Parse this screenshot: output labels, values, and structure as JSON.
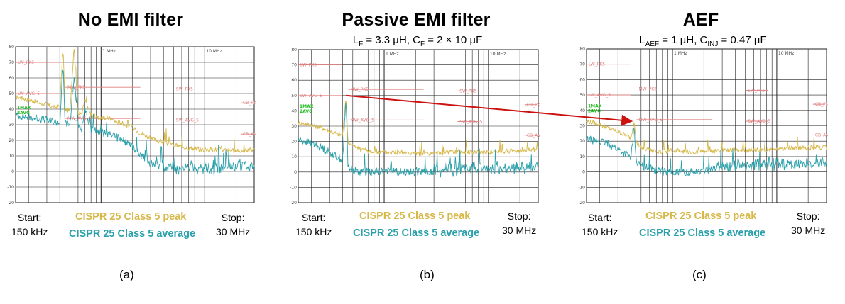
{
  "colors": {
    "peak": "#d7b84a",
    "average": "#2aa0aa",
    "limit": "#e08080",
    "arrow": "#cc1111",
    "marker": "#22bb22",
    "grid": "#222222"
  },
  "tick_labels": {
    "y": [
      "80",
      "70",
      "60",
      "50",
      "40",
      "30",
      "20",
      "10",
      "0",
      "-10",
      "-20"
    ],
    "decades": [
      "1 MHz",
      "10 MHz"
    ]
  },
  "limit_labels": [
    "LW_PK5",
    "LW_AVG_5",
    "MW_PK5",
    "MW_AVG_5",
    "SW_PK5",
    "SW_AVG_5",
    "CB_PK5",
    "CB_AVG_5"
  ],
  "trace_labels": [
    "1MAX",
    "2AVG"
  ],
  "panels": [
    {
      "letter": "(a)",
      "title": "No EMI filter",
      "subtitle": null,
      "start": "Start:\n150 kHz",
      "stop": "Stop:\n30 MHz",
      "peak_legend": "CISPR 25 Class 5 peak",
      "avg_legend": "CISPR 25 Class 5 average"
    },
    {
      "letter": "(b)",
      "title": "Passive EMI filter",
      "subtitle": {
        "l_pre": "L",
        "l_sub": "F",
        "l_val": " = 3.3 µH, C",
        "c_sub": "F",
        "c_val": " = 2 × 10 µF"
      },
      "start": "Start:\n150 kHz",
      "stop": "Stop:\n30 MHz",
      "peak_legend": "CISPR 25 Class 5 peak",
      "avg_legend": "CISPR 25 Class 5 average"
    },
    {
      "letter": "(c)",
      "title": "AEF",
      "subtitle": {
        "l_pre": "L",
        "l_sub": "AEF",
        "l_val": " = 1 µH, C",
        "c_sub": "INJ",
        "c_val": " = 0.47 µF"
      },
      "start": "Start:\n150 kHz",
      "stop": "Stop:\n30 MHz",
      "peak_legend": "CISPR 25 Class 5 peak",
      "avg_legend": "CISPR 25 Class 5 average"
    }
  ],
  "chart_data": [
    {
      "type": "line",
      "title": "No EMI filter",
      "xscale": "log",
      "xlim": [
        0.15,
        30
      ],
      "ylim": [
        -20,
        80
      ],
      "xlabel": "",
      "ylabel": "",
      "limits": [
        {
          "name": "LW_PK5",
          "f": [
            0.15,
            0.3
          ],
          "level": 70
        },
        {
          "name": "LW_AVG_5",
          "f": [
            0.15,
            0.3
          ],
          "level": 50
        },
        {
          "name": "MW_PK5",
          "f": [
            0.53,
            1.8
          ],
          "level": 54
        },
        {
          "name": "MW_AVG_5",
          "f": [
            0.53,
            1.8
          ],
          "level": 34
        },
        {
          "name": "SW_PK5",
          "f": [
            5.9,
            6.2
          ],
          "level": 53
        },
        {
          "name": "SW_AVG_5",
          "f": [
            5.9,
            6.2
          ],
          "level": 33
        },
        {
          "name": "CB_PK5",
          "f": [
            26,
            28
          ],
          "level": 44
        },
        {
          "name": "CB_AVG_5",
          "f": [
            26,
            28
          ],
          "level": 24
        }
      ],
      "series": [
        {
          "name": "1MAX",
          "f": [
            0.15,
            0.2,
            0.25,
            0.3,
            0.35,
            0.4,
            0.43,
            0.45,
            0.5,
            0.55,
            0.6,
            0.65,
            0.7,
            0.8,
            0.9,
            1.0,
            1.2,
            1.4,
            1.6,
            2.0,
            2.5,
            3.0,
            4.0,
            5.0,
            7.0,
            10,
            15,
            20,
            30
          ],
          "level": [
            48,
            46,
            44,
            43,
            41,
            42,
            80,
            40,
            39,
            80,
            38,
            37,
            46,
            36,
            35,
            34,
            34,
            32,
            31,
            28,
            24,
            21,
            19,
            17,
            15,
            14,
            14,
            13,
            14
          ]
        },
        {
          "name": "2AVG",
          "f": [
            0.15,
            0.2,
            0.25,
            0.3,
            0.35,
            0.4,
            0.43,
            0.45,
            0.5,
            0.55,
            0.6,
            0.65,
            0.7,
            0.8,
            0.9,
            1.0,
            1.2,
            1.4,
            1.6,
            2.0,
            2.5,
            3.0,
            4.0,
            5.0,
            7.0,
            10,
            15,
            20,
            30
          ],
          "level": [
            36,
            35,
            34,
            33,
            32,
            31,
            68,
            31,
            30,
            62,
            29,
            28,
            40,
            27,
            26,
            25,
            24,
            22,
            20,
            16,
            10,
            5,
            2,
            1,
            1,
            1,
            2,
            2,
            2
          ]
        }
      ]
    },
    {
      "type": "line",
      "title": "Passive EMI filter",
      "xscale": "log",
      "xlim": [
        0.15,
        30
      ],
      "ylim": [
        -20,
        80
      ],
      "xlabel": "",
      "ylabel": "",
      "limits": [
        {
          "name": "LW_PK5",
          "f": [
            0.15,
            0.3
          ],
          "level": 70
        },
        {
          "name": "LW_AVG_5",
          "f": [
            0.15,
            0.3
          ],
          "level": 50
        },
        {
          "name": "MW_PK5",
          "f": [
            0.53,
            1.8
          ],
          "level": 54
        },
        {
          "name": "MW_AVG_5",
          "f": [
            0.53,
            1.8
          ],
          "level": 34
        },
        {
          "name": "SW_PK5",
          "f": [
            5.9,
            6.2
          ],
          "level": 53
        },
        {
          "name": "SW_AVG_5",
          "f": [
            5.9,
            6.2
          ],
          "level": 33
        },
        {
          "name": "CB_PK5",
          "f": [
            26,
            28
          ],
          "level": 44
        },
        {
          "name": "CB_AVG_5",
          "f": [
            26,
            28
          ],
          "level": 24
        }
      ],
      "series": [
        {
          "name": "1MAX",
          "f": [
            0.15,
            0.2,
            0.25,
            0.3,
            0.35,
            0.4,
            0.43,
            0.45,
            0.5,
            0.6,
            0.7,
            0.8,
            1.0,
            1.5,
            2.0,
            3.0,
            5.0,
            10,
            20,
            30
          ],
          "level": [
            32,
            31,
            29,
            27,
            25,
            24,
            50,
            20,
            17,
            15,
            14,
            13,
            13,
            13,
            12,
            12,
            13,
            13,
            14,
            15
          ]
        },
        {
          "name": "2AVG",
          "f": [
            0.15,
            0.2,
            0.25,
            0.3,
            0.35,
            0.4,
            0.43,
            0.45,
            0.5,
            0.6,
            0.7,
            0.8,
            1.0,
            1.5,
            2.0,
            3.0,
            5.0,
            10,
            20,
            30
          ],
          "level": [
            21,
            19,
            16,
            13,
            10,
            8,
            48,
            4,
            1,
            0,
            0,
            0,
            1,
            0,
            0,
            0,
            1,
            1,
            1,
            2
          ]
        }
      ]
    },
    {
      "type": "line",
      "title": "AEF",
      "xscale": "log",
      "xlim": [
        0.15,
        30
      ],
      "ylim": [
        -20,
        80
      ],
      "xlabel": "",
      "ylabel": "",
      "limits": [
        {
          "name": "LW_PK5",
          "f": [
            0.15,
            0.3
          ],
          "level": 70
        },
        {
          "name": "LW_AVG_5",
          "f": [
            0.15,
            0.3
          ],
          "level": 50
        },
        {
          "name": "MW_PK5",
          "f": [
            0.53,
            1.8
          ],
          "level": 54
        },
        {
          "name": "MW_AVG_5",
          "f": [
            0.53,
            1.8
          ],
          "level": 34
        },
        {
          "name": "SW_PK5",
          "f": [
            5.9,
            6.2
          ],
          "level": 53
        },
        {
          "name": "SW_AVG_5",
          "f": [
            5.9,
            6.2
          ],
          "level": 33
        },
        {
          "name": "CB_PK5",
          "f": [
            26,
            28
          ],
          "level": 44
        },
        {
          "name": "CB_AVG_5",
          "f": [
            26,
            28
          ],
          "level": 24
        }
      ],
      "series": [
        {
          "name": "1MAX",
          "f": [
            0.15,
            0.2,
            0.25,
            0.3,
            0.35,
            0.4,
            0.43,
            0.45,
            0.5,
            0.6,
            0.7,
            0.8,
            1.0,
            1.5,
            2.0,
            3.0,
            5.0,
            10,
            20,
            30
          ],
          "level": [
            33,
            31,
            28,
            26,
            24,
            22,
            34,
            19,
            16,
            14,
            13,
            13,
            14,
            13,
            13,
            14,
            14,
            15,
            16,
            16
          ]
        },
        {
          "name": "2AVG",
          "f": [
            0.15,
            0.2,
            0.25,
            0.3,
            0.35,
            0.4,
            0.43,
            0.45,
            0.5,
            0.6,
            0.7,
            0.8,
            1.0,
            1.5,
            2.0,
            3.0,
            5.0,
            10,
            20,
            30
          ],
          "level": [
            21,
            20,
            18,
            15,
            12,
            9,
            30,
            6,
            4,
            2,
            1,
            0,
            0,
            0,
            1,
            2,
            3,
            4,
            4,
            5
          ]
        }
      ]
    }
  ]
}
